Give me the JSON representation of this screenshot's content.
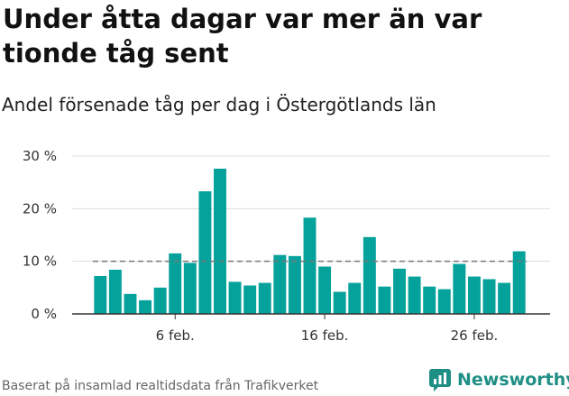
{
  "title": "Under åtta dagar var mer än var tionde tåg sent",
  "subtitle": "Andel försenade tåg per dag i Östergötlands län",
  "footer": "Baserat på insamlad realtidsdata från Trafikverket",
  "brand": {
    "name": "Newsworthy",
    "icon": "chart-logo-icon"
  },
  "colors": {
    "bar": "#05a29b",
    "reference": "#777777",
    "grid": "#dddddd",
    "axis": "#333333"
  },
  "chart_data": {
    "type": "bar",
    "title": "",
    "xlabel": "",
    "ylabel": "",
    "categories": [
      "1 feb.",
      "2 feb.",
      "3 feb.",
      "4 feb.",
      "5 feb.",
      "6 feb.",
      "7 feb.",
      "8 feb.",
      "9 feb.",
      "10 feb.",
      "11 feb.",
      "12 feb.",
      "13 feb.",
      "14 feb.",
      "15 feb.",
      "16 feb.",
      "17 feb.",
      "18 feb.",
      "19 feb.",
      "20 feb.",
      "21 feb.",
      "22 feb.",
      "23 feb.",
      "24 feb.",
      "25 feb.",
      "26 feb.",
      "27 feb.",
      "28 feb.",
      "29 feb."
    ],
    "values": [
      7.2,
      8.4,
      3.8,
      2.6,
      5.0,
      11.5,
      9.7,
      23.3,
      27.6,
      6.1,
      5.4,
      5.9,
      11.2,
      11.0,
      18.3,
      9.0,
      4.2,
      5.9,
      14.6,
      5.2,
      8.6,
      7.1,
      5.2,
      4.7,
      9.5,
      7.1,
      6.6,
      5.9,
      11.9
    ],
    "ylim": [
      0,
      30
    ],
    "yticks": [
      0,
      10,
      20,
      30
    ],
    "ytick_labels": [
      "0 %",
      "10 %",
      "20 %",
      "30 %"
    ],
    "xtick_labels": [
      {
        "index": 5,
        "label": "6 feb."
      },
      {
        "index": 15,
        "label": "16 feb."
      },
      {
        "index": 25,
        "label": "26 feb."
      }
    ],
    "reference_line": 10,
    "grid": true,
    "legend": "none"
  }
}
